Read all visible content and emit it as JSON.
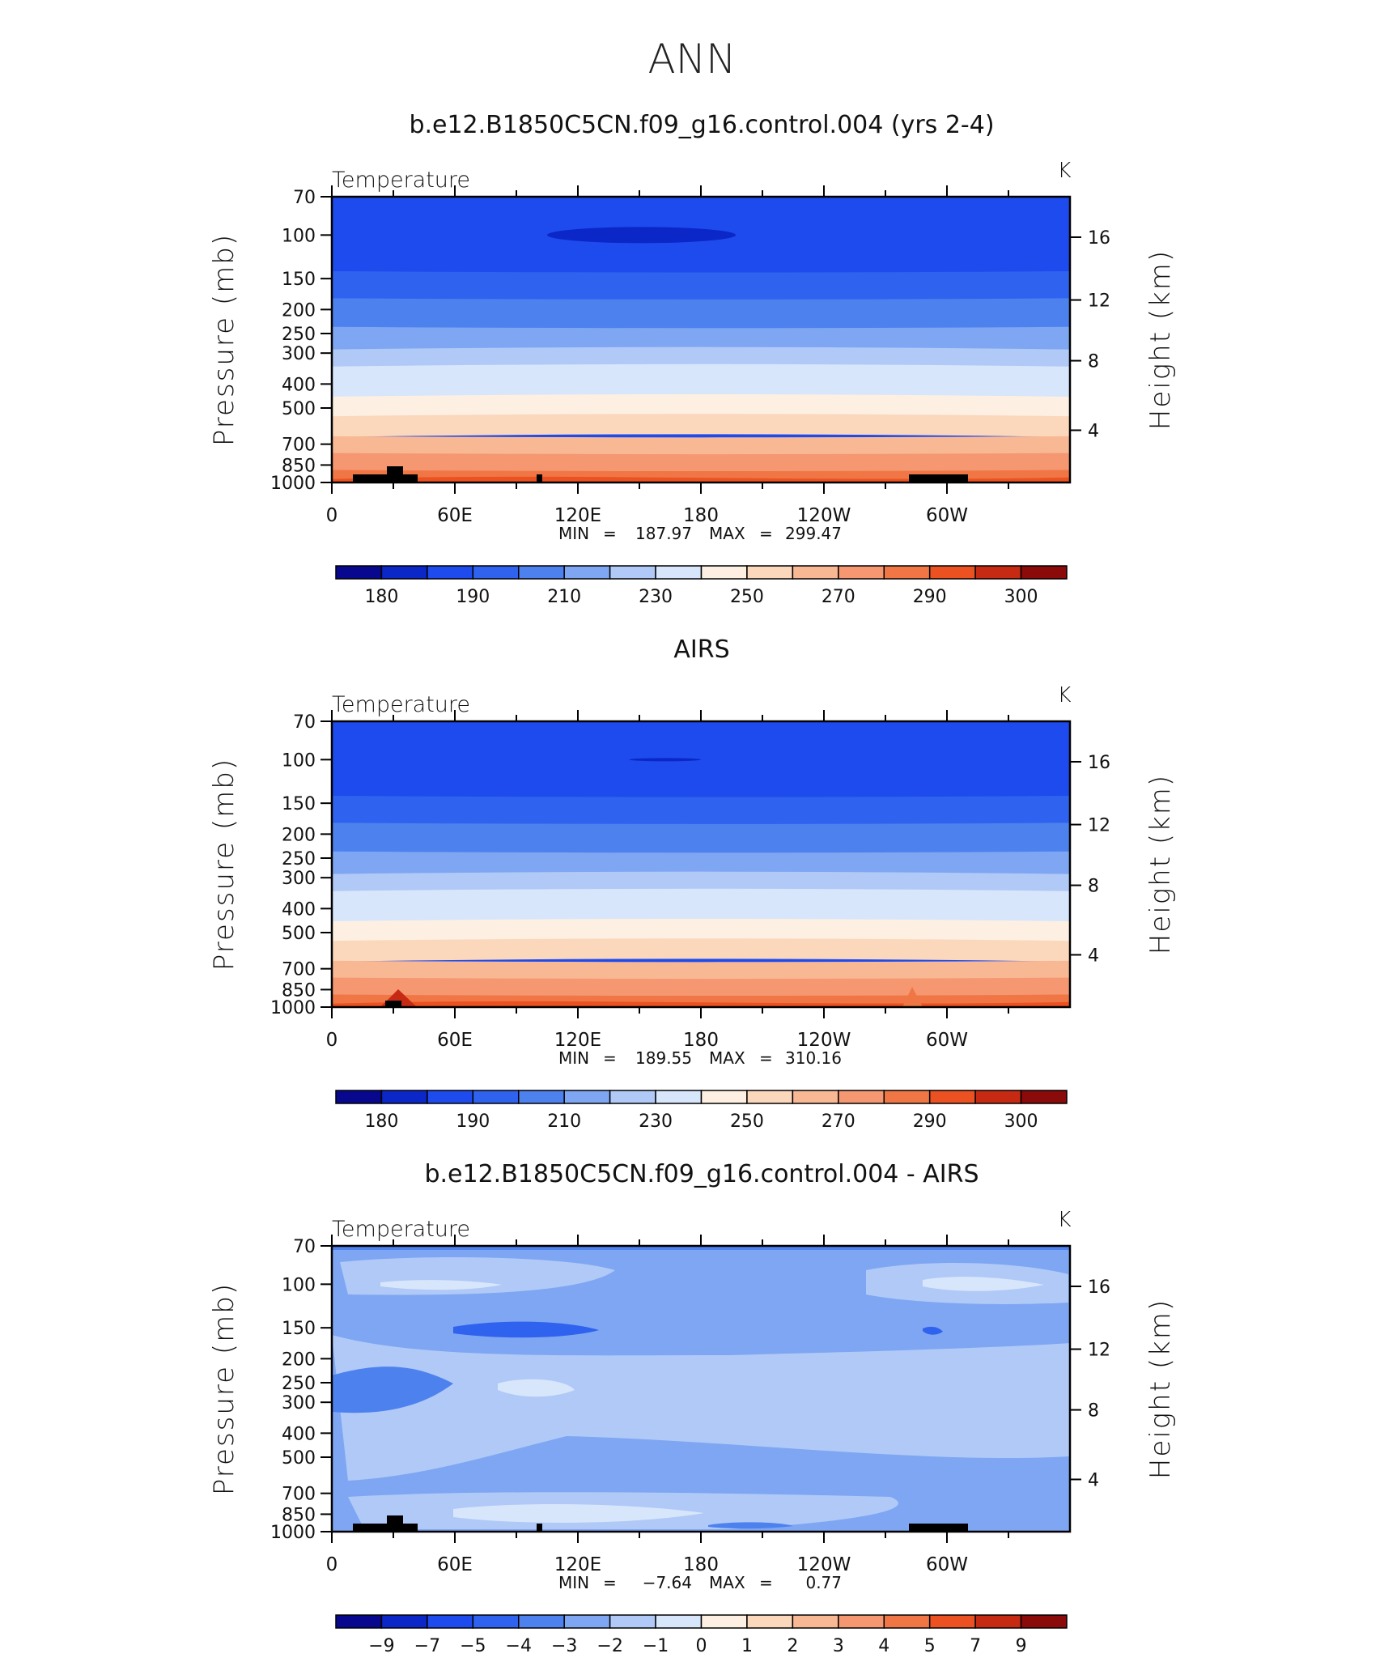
{
  "page": {
    "title": "ANN"
  },
  "panels": [
    {
      "id": "model",
      "title": "b.e12.B1850C5CN.f09_g16.control.004 (yrs 2-4)",
      "var_label": "Temperature",
      "units": "K",
      "stats": {
        "min_label": "MIN",
        "min": "187.97",
        "max_label": "MAX",
        "max": "299.47"
      },
      "colorbar_labels": [
        "180",
        "190",
        "210",
        "230",
        "250",
        "270",
        "290",
        "300"
      ],
      "field": {
        "kind": "bands",
        "bands": [
          1,
          2,
          3,
          4,
          5,
          6,
          7,
          8,
          9,
          10,
          11,
          12
        ],
        "cold_core": {
          "lon_start": 105,
          "lon_end": 197,
          "level": 100
        },
        "warm_base": true
      }
    },
    {
      "id": "obs",
      "title": "AIRS",
      "var_label": "Temperature",
      "units": "K",
      "stats": {
        "min_label": "MIN",
        "min": "189.55",
        "max_label": "MAX",
        "max": "310.16"
      },
      "colorbar_labels": [
        "180",
        "190",
        "210",
        "230",
        "250",
        "270",
        "290",
        "300"
      ],
      "field": {
        "kind": "bands",
        "bands": [
          1,
          2,
          3,
          4,
          5,
          6,
          7,
          8,
          9,
          10,
          11,
          12
        ],
        "cold_core": {
          "lon_start": 145,
          "lon_end": 180,
          "level": 100
        },
        "warm_base": true
      }
    },
    {
      "id": "diff",
      "title": "b.e12.B1850C5CN.f09_g16.control.004 - AIRS",
      "var_label": "Temperature",
      "units": "K",
      "stats": {
        "min_label": "MIN",
        "min": "−7.64",
        "max_label": "MAX",
        "max": "0.77"
      },
      "colorbar_labels": [
        "−9",
        "−7",
        "−5",
        "−4",
        "−3",
        "−2",
        "−1",
        "0",
        "1",
        "2",
        "3",
        "4",
        "5",
        "7",
        "9"
      ],
      "field": {
        "kind": "difference",
        "background_class": 4
      }
    }
  ],
  "axes": {
    "ylabel_left": "Pressure (mb)",
    "ylabel_right": "Height (km)",
    "pressure_ticks": [
      "70",
      "100",
      "150",
      "200",
      "250",
      "300",
      "400",
      "500",
      "700",
      "850",
      "1000"
    ],
    "height_ticks": [
      "16",
      "12",
      "8",
      "4"
    ],
    "lon_ticks": [
      "0",
      "60E",
      "120E",
      "180",
      "120W",
      "60W"
    ]
  },
  "colors": {
    "temperature_palette": [
      "#08088e",
      "#0c27c8",
      "#1e4bed",
      "#2f62ee",
      "#4d81ee",
      "#7ea6f2",
      "#b0c9f7",
      "#d8e6fb",
      "#fdf0e2",
      "#fbd7bc",
      "#f8b894",
      "#f59771",
      "#f07745",
      "#eb5121",
      "#c72a12",
      "#8b0a0a"
    ],
    "diff_palette": [
      "#08088e",
      "#0c27c8",
      "#1e4bed",
      "#2f62ee",
      "#4d81ee",
      "#7ea6f2",
      "#b0c9f7",
      "#d8e6fb",
      "#fdf0e2",
      "#fbd7bc",
      "#f8b894",
      "#f59771",
      "#f07745",
      "#eb5121",
      "#c72a12",
      "#8b0a0a"
    ],
    "topography": "#000000"
  },
  "chart_data": [
    {
      "type": "heatmap",
      "title": "b.e12.B1850C5CN.f09_g16.control.004 (yrs 2-4)",
      "subtitle": "Temperature",
      "units": "K",
      "x": {
        "label": "",
        "ticks": [
          "0",
          "60E",
          "120E",
          "180",
          "120W",
          "60W"
        ],
        "range_deg": [
          0,
          360
        ]
      },
      "y": {
        "label": "Pressure (mb)",
        "scale": "log",
        "reversed": true,
        "range": [
          70,
          1000
        ],
        "ticks": [
          70,
          100,
          150,
          200,
          250,
          300,
          400,
          500,
          700,
          850,
          1000
        ]
      },
      "y2": {
        "label": "Height (km)",
        "ticks": [
          16,
          12,
          8,
          4
        ]
      },
      "min": 187.97,
      "max": 299.47,
      "color_levels": [
        180,
        190,
        210,
        230,
        250,
        270,
        290,
        300
      ],
      "level_profile_K": [
        {
          "p": 70,
          "t": 200
        },
        {
          "p": 100,
          "t": 195
        },
        {
          "p": 150,
          "t": 205
        },
        {
          "p": 200,
          "t": 215
        },
        {
          "p": 250,
          "t": 225
        },
        {
          "p": 300,
          "t": 235
        },
        {
          "p": 400,
          "t": 250
        },
        {
          "p": 500,
          "t": 260
        },
        {
          "p": 700,
          "t": 275
        },
        {
          "p": 850,
          "t": 285
        },
        {
          "p": 1000,
          "t": 295
        }
      ]
    },
    {
      "type": "heatmap",
      "title": "AIRS",
      "subtitle": "Temperature",
      "units": "K",
      "x": {
        "label": "",
        "ticks": [
          "0",
          "60E",
          "120E",
          "180",
          "120W",
          "60W"
        ],
        "range_deg": [
          0,
          360
        ]
      },
      "y": {
        "label": "Pressure (mb)",
        "scale": "log",
        "reversed": true,
        "range": [
          70,
          1000
        ],
        "ticks": [
          70,
          100,
          150,
          200,
          250,
          300,
          400,
          500,
          700,
          850,
          1000
        ]
      },
      "y2": {
        "label": "Height (km)",
        "ticks": [
          16,
          12,
          8,
          4
        ]
      },
      "min": 189.55,
      "max": 310.16,
      "color_levels": [
        180,
        190,
        210,
        230,
        250,
        270,
        290,
        300
      ],
      "level_profile_K": [
        {
          "p": 70,
          "t": 200
        },
        {
          "p": 100,
          "t": 197
        },
        {
          "p": 150,
          "t": 206
        },
        {
          "p": 200,
          "t": 216
        },
        {
          "p": 250,
          "t": 226
        },
        {
          "p": 300,
          "t": 236
        },
        {
          "p": 400,
          "t": 251
        },
        {
          "p": 500,
          "t": 261
        },
        {
          "p": 700,
          "t": 276
        },
        {
          "p": 850,
          "t": 287
        },
        {
          "p": 1000,
          "t": 298
        }
      ]
    },
    {
      "type": "heatmap",
      "title": "b.e12.B1850C5CN.f09_g16.control.004 - AIRS",
      "subtitle": "Temperature",
      "units": "K",
      "x": {
        "label": "",
        "ticks": [
          "0",
          "60E",
          "120E",
          "180",
          "120W",
          "60W"
        ],
        "range_deg": [
          0,
          360
        ]
      },
      "y": {
        "label": "Pressure (mb)",
        "scale": "log",
        "reversed": true,
        "range": [
          70,
          1000
        ],
        "ticks": [
          70,
          100,
          150,
          200,
          250,
          300,
          400,
          500,
          700,
          850,
          1000
        ]
      },
      "y2": {
        "label": "Height (km)",
        "ticks": [
          16,
          12,
          8,
          4
        ]
      },
      "min": -7.64,
      "max": 0.77,
      "color_levels": [
        -9,
        -7,
        -5,
        -4,
        -3,
        -2,
        -1,
        0,
        1,
        2,
        3,
        4,
        5,
        7,
        9
      ]
    }
  ]
}
